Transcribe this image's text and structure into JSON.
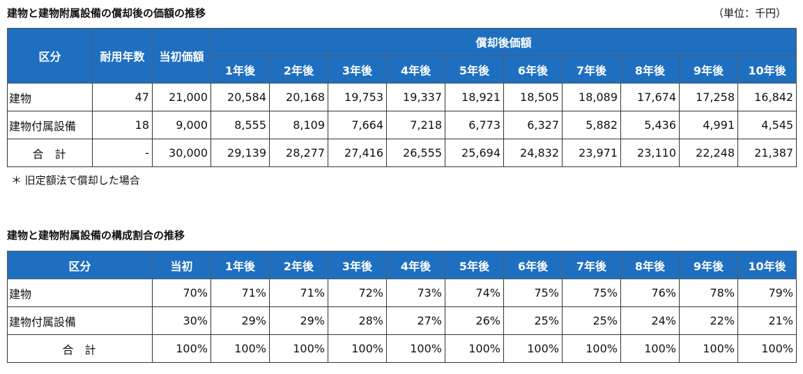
{
  "section1": {
    "title": "建物と建物附属設備の償却後の価額の推移",
    "unit": "（単位：千円）",
    "headers": {
      "category": "区分",
      "useful_life": "耐用年数",
      "initial_value": "当初価額",
      "after_group": "償却後価額",
      "years": [
        "1年後",
        "2年後",
        "3年後",
        "4年後",
        "5年後",
        "6年後",
        "7年後",
        "8年後",
        "9年後",
        "10年後"
      ]
    },
    "rows": [
      {
        "label": "建物",
        "life": "47",
        "initial": "21,000",
        "values": [
          "20,584",
          "20,168",
          "19,753",
          "19,337",
          "18,921",
          "18,505",
          "18,089",
          "17,674",
          "17,258",
          "16,842"
        ]
      },
      {
        "label": "建物付属設備",
        "life": "18",
        "initial": "9,000",
        "values": [
          "8,555",
          "8,109",
          "7,664",
          "7,218",
          "6,773",
          "6,327",
          "5,882",
          "5,436",
          "4,991",
          "4,545"
        ]
      },
      {
        "label": "合　計",
        "life": "-",
        "initial": "30,000",
        "values": [
          "29,139",
          "28,277",
          "27,416",
          "26,555",
          "25,694",
          "24,832",
          "23,971",
          "23,110",
          "22,248",
          "21,387"
        ]
      }
    ],
    "note": "＊ 旧定額法で償却した場合"
  },
  "section2": {
    "title": "建物と建物附属設備の構成割合の推移",
    "headers": {
      "category": "区分",
      "initial": "当初",
      "years": [
        "1年後",
        "2年後",
        "3年後",
        "4年後",
        "5年後",
        "6年後",
        "7年後",
        "8年後",
        "9年後",
        "10年後"
      ]
    },
    "rows": [
      {
        "label": "建物",
        "initial": "70%",
        "values": [
          "71%",
          "71%",
          "72%",
          "73%",
          "74%",
          "75%",
          "75%",
          "76%",
          "78%",
          "79%"
        ]
      },
      {
        "label": "建物付属設備",
        "initial": "30%",
        "values": [
          "29%",
          "29%",
          "28%",
          "27%",
          "26%",
          "25%",
          "25%",
          "24%",
          "22%",
          "21%"
        ]
      },
      {
        "label": "合　計",
        "initial": "100%",
        "values": [
          "100%",
          "100%",
          "100%",
          "100%",
          "100%",
          "100%",
          "100%",
          "100%",
          "100%",
          "100%"
        ]
      }
    ]
  }
}
